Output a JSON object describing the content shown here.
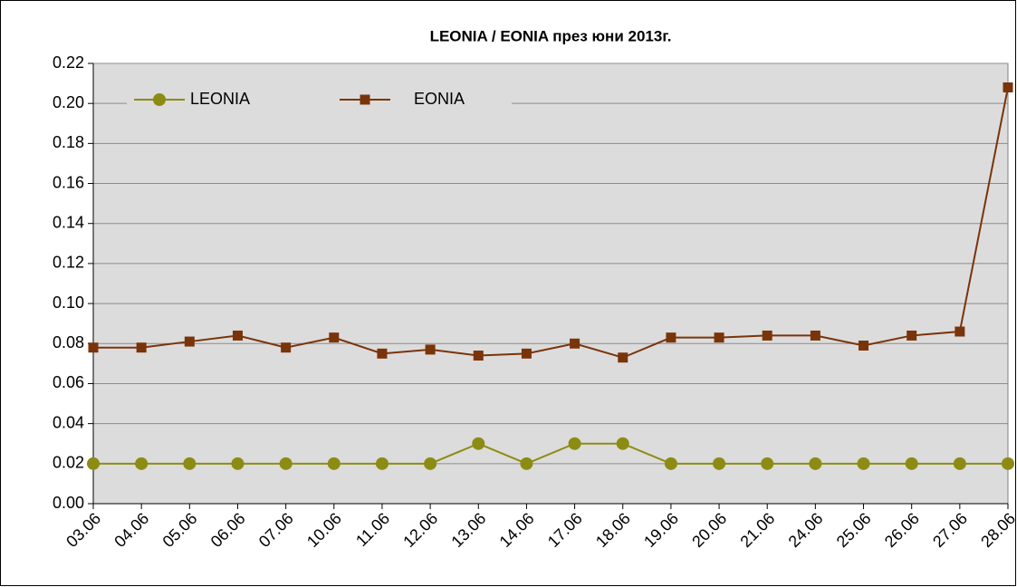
{
  "chart_data": {
    "type": "line",
    "title": "LEONIA  /  EONIA през юни 2013г.",
    "categories": [
      "03.06",
      "04.06",
      "05.06",
      "06.06",
      "07.06",
      "10.06",
      "11.06",
      "12.06",
      "13.06",
      "14.06",
      "17.06",
      "18.06",
      "19.06",
      "20.06",
      "21.06",
      "24.06",
      "25.06",
      "26.06",
      "27.06",
      "28.06"
    ],
    "series": [
      {
        "name": "LEONIA",
        "color": "#8c8c14",
        "marker": "circle",
        "values": [
          0.02,
          0.02,
          0.02,
          0.02,
          0.02,
          0.02,
          0.02,
          0.02,
          0.03,
          0.02,
          0.03,
          0.03,
          0.02,
          0.02,
          0.02,
          0.02,
          0.02,
          0.02,
          0.02,
          0.02
        ]
      },
      {
        "name": "EONIA",
        "color": "#7a340a",
        "marker": "square",
        "values": [
          0.078,
          0.078,
          0.081,
          0.084,
          0.078,
          0.083,
          0.075,
          0.077,
          0.074,
          0.075,
          0.08,
          0.073,
          0.083,
          0.083,
          0.084,
          0.084,
          0.079,
          0.084,
          0.086,
          0.208
        ]
      }
    ],
    "ylim": [
      0,
      0.22
    ],
    "yticks": [
      {
        "value": 0,
        "label": "0.00"
      },
      {
        "value": 0.02,
        "label": "0.02"
      },
      {
        "value": 0.04,
        "label": "0.04"
      },
      {
        "value": 0.06,
        "label": "0.06"
      },
      {
        "value": 0.08,
        "label": "0.08"
      },
      {
        "value": 0.1,
        "label": "0.10"
      },
      {
        "value": 0.12,
        "label": "0.12"
      },
      {
        "value": 0.14,
        "label": "0.14"
      },
      {
        "value": 0.16,
        "label": "0.16"
      },
      {
        "value": 0.18,
        "label": "0.18"
      },
      {
        "value": 0.2,
        "label": "0.20"
      },
      {
        "value": 0.22,
        "label": "0.22"
      }
    ],
    "grid": true,
    "legend": "top-left",
    "background": "#dcdcdc"
  }
}
